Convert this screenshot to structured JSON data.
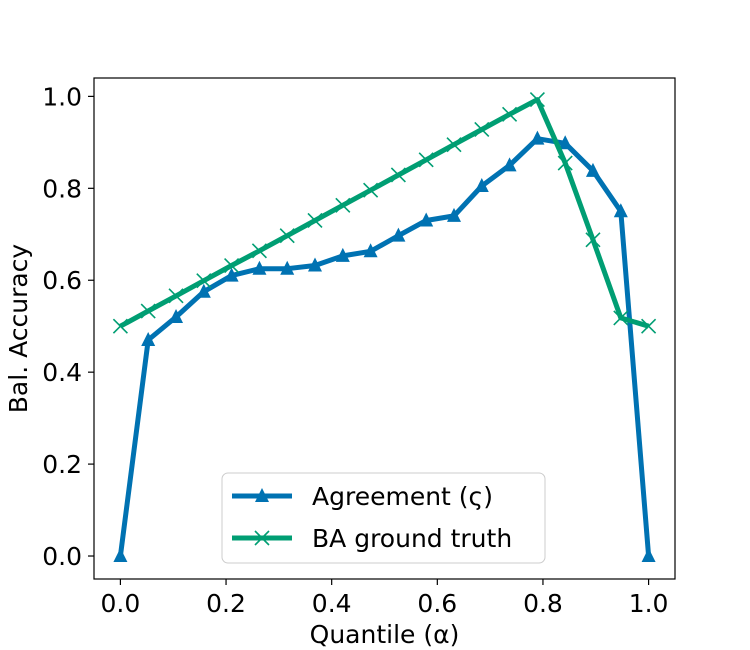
{
  "chart_data": {
    "type": "line",
    "title": "",
    "xlabel": "Quantile (α)",
    "ylabel": "Bal. Accuracy",
    "xlim": [
      -0.05,
      1.05
    ],
    "ylim": [
      -0.05,
      1.04
    ],
    "xticks": [
      0.0,
      0.2,
      0.4,
      0.6,
      0.8,
      1.0
    ],
    "xtick_labels": [
      "0.0",
      "0.2",
      "0.4",
      "0.6",
      "0.8",
      "1.0"
    ],
    "yticks": [
      0.0,
      0.2,
      0.4,
      0.6,
      0.8,
      1.0
    ],
    "ytick_labels": [
      "0.0",
      "0.2",
      "0.4",
      "0.6",
      "0.8",
      "1.0"
    ],
    "grid": false,
    "legend_position": "bottom-center",
    "series": [
      {
        "name": "Agreement (ς)",
        "color": "#0072B2",
        "marker": "triangle",
        "x": [
          0.0,
          0.0526,
          0.1053,
          0.1579,
          0.2105,
          0.2632,
          0.3158,
          0.3684,
          0.4211,
          0.4737,
          0.5263,
          0.5789,
          0.6316,
          0.6842,
          0.7368,
          0.7895,
          0.8421,
          0.8947,
          0.9474,
          1.0
        ],
        "y": [
          0.0,
          0.47,
          0.52,
          0.575,
          0.61,
          0.625,
          0.625,
          0.632,
          0.653,
          0.663,
          0.697,
          0.73,
          0.74,
          0.805,
          0.85,
          0.908,
          0.898,
          0.838,
          0.75,
          0.0
        ]
      },
      {
        "name": "BA ground truth",
        "color": "#009E73",
        "marker": "x",
        "x": [
          0.0,
          0.0526,
          0.1053,
          0.1579,
          0.2105,
          0.2632,
          0.3158,
          0.3684,
          0.4211,
          0.4737,
          0.5263,
          0.5789,
          0.6316,
          0.6842,
          0.7368,
          0.7895,
          0.8421,
          0.8947,
          0.9474,
          1.0
        ],
        "y": [
          0.5,
          0.533,
          0.566,
          0.599,
          0.632,
          0.664,
          0.697,
          0.73,
          0.763,
          0.796,
          0.829,
          0.862,
          0.895,
          0.928,
          0.961,
          0.993,
          0.855,
          0.688,
          0.518,
          0.5
        ]
      }
    ]
  }
}
